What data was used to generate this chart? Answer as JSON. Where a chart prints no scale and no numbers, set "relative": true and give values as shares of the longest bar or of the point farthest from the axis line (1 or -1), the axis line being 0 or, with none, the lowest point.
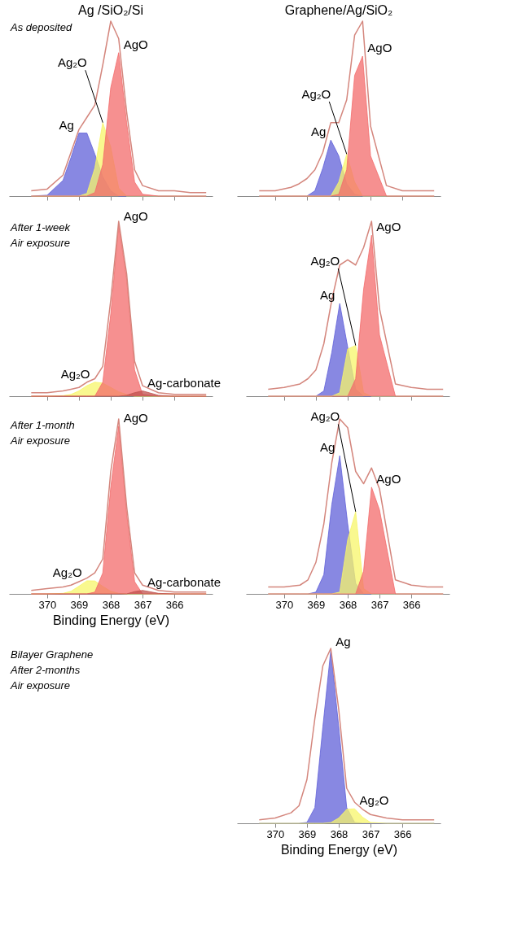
{
  "chart_data": [
    {
      "type": "area",
      "title": "Ag /SiO₂/Si",
      "relative": true,
      "xlim": [
        371.2,
        364.8
      ],
      "xticks": [
        370,
        369,
        368,
        367,
        366
      ],
      "tick_labels": false,
      "grid": false,
      "annotations": [
        "As deposited"
      ],
      "x": [
        370.5,
        370,
        369.5,
        369.25,
        369,
        368.75,
        368.5,
        368.25,
        368,
        367.75,
        367.5,
        367.25,
        367,
        366.5,
        366,
        365.5,
        365
      ],
      "series": [
        {
          "name": "Ag",
          "color": "#6060d8",
          "values": [
            0,
            0.005,
            0.09,
            0.22,
            0.36,
            0.36,
            0.24,
            0.11,
            0.03,
            0,
            0,
            0,
            0,
            0,
            0,
            0,
            0
          ]
        },
        {
          "name": "Ag₂O",
          "color": "#f7f56a",
          "values": [
            0,
            0,
            0,
            0,
            0,
            0.015,
            0.16,
            0.42,
            0.28,
            0.045,
            0,
            0,
            0,
            0,
            0,
            0,
            0
          ]
        },
        {
          "name": "AgO",
          "color": "#f36b6b",
          "values": [
            0,
            0,
            0,
            0,
            0,
            0,
            0.02,
            0.18,
            0.62,
            0.82,
            0.42,
            0.08,
            0.01,
            0,
            0,
            0,
            0
          ]
        },
        {
          "type": "line",
          "color": "#d4867d",
          "values": [
            0.03,
            0.04,
            0.12,
            0.25,
            0.38,
            0.45,
            0.52,
            0.75,
            1.0,
            0.9,
            0.48,
            0.15,
            0.06,
            0.03,
            0.03,
            0.02,
            0.02
          ]
        }
      ]
    },
    {
      "type": "area",
      "title": "Graphene/Ag/SiO₂",
      "relative": true,
      "xlim": [
        371.2,
        364.8
      ],
      "xticks": [
        370,
        369,
        368,
        367,
        366
      ],
      "tick_labels": false,
      "grid": false,
      "x": [
        370.5,
        370,
        369.5,
        369.25,
        369,
        368.75,
        368.5,
        368.25,
        368,
        367.75,
        367.5,
        367.25,
        367,
        366.5,
        366,
        365.5,
        365
      ],
      "series": [
        {
          "name": "Ag",
          "color": "#6060d8",
          "values": [
            0,
            0,
            0,
            0,
            0,
            0.03,
            0.16,
            0.32,
            0.23,
            0.07,
            0.01,
            0,
            0,
            0,
            0,
            0,
            0
          ]
        },
        {
          "name": "Ag₂O",
          "color": "#f7f56a",
          "values": [
            0,
            0,
            0,
            0,
            0,
            0,
            0,
            0,
            0.08,
            0.24,
            0.08,
            0,
            0,
            0,
            0,
            0,
            0
          ]
        },
        {
          "name": "AgO",
          "color": "#f36b6b",
          "values": [
            0,
            0,
            0,
            0,
            0,
            0,
            0,
            0,
            0.01,
            0.15,
            0.69,
            0.8,
            0.23,
            0,
            0,
            0,
            0
          ]
        },
        {
          "type": "line",
          "color": "#d4867d",
          "values": [
            0.03,
            0.03,
            0.05,
            0.07,
            0.1,
            0.15,
            0.25,
            0.42,
            0.42,
            0.55,
            0.92,
            1.0,
            0.4,
            0.06,
            0.03,
            0.03,
            0.03
          ]
        }
      ]
    },
    {
      "type": "area",
      "relative": true,
      "xlim": [
        371.2,
        364.8
      ],
      "xticks": [
        370,
        369,
        368,
        367,
        366
      ],
      "tick_labels": false,
      "grid": false,
      "annotations": [
        "After 1-week\nAir exposure"
      ],
      "x": [
        370.5,
        370,
        369.5,
        369.25,
        369,
        368.75,
        368.5,
        368.25,
        368,
        367.75,
        367.5,
        367.25,
        367,
        366.5,
        366,
        365.5,
        365
      ],
      "series": [
        {
          "name": "Ag₂O",
          "color": "#f7f56a",
          "values": [
            0,
            0,
            0.003,
            0.01,
            0.03,
            0.06,
            0.08,
            0.075,
            0.05,
            0.025,
            0.01,
            0,
            0,
            0,
            0,
            0,
            0
          ]
        },
        {
          "name": "AgO",
          "color": "#f36b6b",
          "values": [
            0,
            0,
            0,
            0,
            0,
            0,
            0,
            0.08,
            0.47,
            0.98,
            0.67,
            0.15,
            0.01,
            0,
            0,
            0,
            0
          ]
        },
        {
          "name": "Ag-carbonate",
          "color": "#c0504d",
          "values": [
            0,
            0,
            0,
            0,
            0,
            0,
            0,
            0,
            0,
            0,
            0.005,
            0.02,
            0.03,
            0.005,
            0,
            0,
            0
          ]
        },
        {
          "type": "line",
          "color": "#d4867d",
          "values": [
            0.02,
            0.02,
            0.03,
            0.04,
            0.05,
            0.08,
            0.1,
            0.17,
            0.55,
            1.0,
            0.7,
            0.2,
            0.06,
            0.02,
            0.01,
            0.01,
            0.01
          ]
        }
      ]
    },
    {
      "type": "area",
      "relative": true,
      "xlim": [
        371.2,
        364.8
      ],
      "xticks": [
        370,
        369,
        368,
        367,
        366
      ],
      "tick_labels": false,
      "grid": false,
      "x": [
        370.5,
        370,
        369.5,
        369.25,
        369,
        368.75,
        368.5,
        368.25,
        368,
        367.75,
        367.5,
        367.25,
        367,
        366.5,
        366,
        365.5,
        365
      ],
      "series": [
        {
          "name": "Ag",
          "color": "#6060d8",
          "values": [
            0,
            0,
            0,
            0,
            0,
            0.03,
            0.25,
            0.53,
            0.28,
            0.04,
            0,
            0,
            0,
            0,
            0,
            0,
            0
          ]
        },
        {
          "name": "Ag₂O",
          "color": "#f7f56a",
          "values": [
            0,
            0,
            0,
            0,
            0,
            0,
            0,
            0.02,
            0.27,
            0.29,
            0.02,
            0,
            0,
            0,
            0,
            0,
            0
          ]
        },
        {
          "name": "AgO",
          "color": "#f36b6b",
          "values": [
            0,
            0,
            0,
            0,
            0,
            0,
            0,
            0,
            0,
            0.1,
            0.61,
            0.92,
            0.35,
            0,
            0,
            0,
            0
          ]
        },
        {
          "type": "line",
          "color": "#d4867d",
          "values": [
            0.04,
            0.05,
            0.07,
            0.1,
            0.15,
            0.3,
            0.55,
            0.75,
            0.78,
            0.75,
            0.85,
            1.0,
            0.5,
            0.07,
            0.05,
            0.04,
            0.04
          ]
        }
      ]
    },
    {
      "type": "area",
      "relative": true,
      "xlim": [
        371.2,
        364.8
      ],
      "xticks": [
        370,
        369,
        368,
        367,
        366
      ],
      "tick_labels": "x",
      "grid": false,
      "xlabel": "Binding Energy (eV)",
      "annotations": [
        "After 1-month\nAir exposure"
      ],
      "x": [
        370.5,
        370,
        369.5,
        369.25,
        369,
        368.75,
        368.5,
        368.25,
        368,
        367.75,
        367.5,
        367.25,
        367,
        366.5,
        366,
        365.5,
        365
      ],
      "series": [
        {
          "name": "Ag₂O",
          "color": "#f7f56a",
          "values": [
            0,
            0,
            0.003,
            0.015,
            0.044,
            0.075,
            0.074,
            0.043,
            0.015,
            0.003,
            0,
            0,
            0,
            0,
            0,
            0,
            0
          ]
        },
        {
          "name": "AgO",
          "color": "#f36b6b",
          "values": [
            0,
            0,
            0,
            0,
            0,
            0,
            0.01,
            0.12,
            0.61,
            0.96,
            0.46,
            0.07,
            0,
            0,
            0,
            0,
            0
          ]
        },
        {
          "name": "Ag-carbonate",
          "color": "#c0504d",
          "values": [
            0,
            0,
            0,
            0,
            0,
            0,
            0,
            0,
            0,
            0,
            0,
            0.013,
            0.02,
            0.003,
            0,
            0,
            0
          ]
        },
        {
          "type": "line",
          "color": "#d4867d",
          "values": [
            0.02,
            0.03,
            0.04,
            0.05,
            0.07,
            0.09,
            0.12,
            0.2,
            0.7,
            1.0,
            0.5,
            0.12,
            0.05,
            0.02,
            0.01,
            0.01,
            0.01
          ]
        }
      ]
    },
    {
      "type": "area",
      "relative": true,
      "xlim": [
        371.2,
        364.8
      ],
      "xticks": [
        370,
        369,
        368,
        367,
        366
      ],
      "tick_labels": "x",
      "grid": false,
      "x": [
        370.5,
        370,
        369.5,
        369.25,
        369,
        368.75,
        368.5,
        368.25,
        368,
        367.75,
        367.5,
        367.25,
        367,
        366.5,
        366,
        365.5,
        365
      ],
      "series": [
        {
          "name": "Ag",
          "color": "#6060d8",
          "values": [
            0,
            0,
            0,
            0,
            0.01,
            0.11,
            0.51,
            0.79,
            0.4,
            0.06,
            0,
            0,
            0,
            0,
            0,
            0,
            0
          ]
        },
        {
          "name": "Ag₂O",
          "color": "#f7f56a",
          "values": [
            0,
            0,
            0,
            0,
            0,
            0,
            0,
            0.01,
            0.31,
            0.47,
            0.03,
            0,
            0,
            0,
            0,
            0,
            0
          ]
        },
        {
          "name": "AgO",
          "color": "#f36b6b",
          "values": [
            0,
            0,
            0,
            0,
            0,
            0,
            0,
            0,
            0,
            0,
            0.13,
            0.61,
            0.48,
            0,
            0,
            0,
            0
          ]
        },
        {
          "type": "line",
          "color": "#d4867d",
          "values": [
            0.04,
            0.04,
            0.05,
            0.08,
            0.18,
            0.4,
            0.75,
            1.0,
            0.95,
            0.7,
            0.63,
            0.72,
            0.6,
            0.08,
            0.05,
            0.04,
            0.04
          ]
        }
      ]
    },
    {
      "type": "other",
      "annotations": [
        "Bilayer Graphene\nAfter 2-months\nAir exposure"
      ]
    },
    {
      "type": "area",
      "relative": true,
      "xlim": [
        371.2,
        364.8
      ],
      "xticks": [
        370,
        369,
        368,
        367,
        366
      ],
      "tick_labels": "x",
      "grid": false,
      "xlabel": "Binding Energy (eV)",
      "x": [
        370.5,
        370,
        369.5,
        369.25,
        369,
        368.75,
        368.5,
        368.25,
        368,
        367.75,
        367.5,
        367.25,
        367,
        366.5,
        366,
        365.5,
        365
      ],
      "series": [
        {
          "name": "Ag",
          "color": "#6060d8",
          "values": [
            0,
            0,
            0,
            0,
            0.005,
            0.09,
            0.55,
            0.99,
            0.55,
            0.09,
            0.005,
            0,
            0,
            0,
            0,
            0,
            0
          ]
        },
        {
          "name": "Ag₂O",
          "color": "#f7f56a",
          "values": [
            0,
            0,
            0,
            0,
            0,
            0,
            0,
            0.004,
            0.03,
            0.08,
            0.083,
            0.035,
            0.005,
            0,
            0,
            0,
            0
          ]
        },
        {
          "type": "line",
          "color": "#d4867d",
          "values": [
            0.02,
            0.03,
            0.06,
            0.1,
            0.25,
            0.6,
            0.9,
            1.0,
            0.65,
            0.2,
            0.12,
            0.08,
            0.05,
            0.03,
            0.02,
            0.02,
            0.02
          ]
        }
      ]
    }
  ]
}
